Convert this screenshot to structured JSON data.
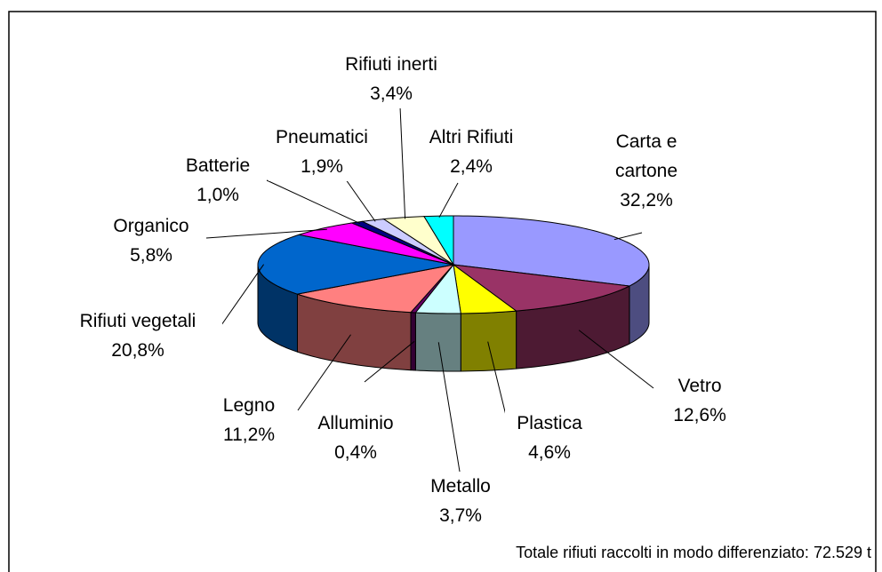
{
  "chart_data": {
    "type": "pie3d",
    "categories": [
      "Carta e cartone",
      "Vetro",
      "Plastica",
      "Metallo",
      "Alluminio",
      "Legno",
      "Rifiuti vegetali",
      "Organico",
      "Batterie",
      "Pneumatici",
      "Rifiuti inerti",
      "Altri Rifiuti"
    ],
    "values": [
      32.2,
      12.6,
      4.6,
      3.7,
      0.4,
      11.2,
      20.8,
      5.8,
      1.0,
      1.9,
      3.4,
      2.4
    ],
    "value_labels": [
      "32,2%",
      "12,6%",
      "4,6%",
      "3,7%",
      "0,4%",
      "11,2%",
      "20,8%",
      "5,8%",
      "1,0%",
      "1,9%",
      "3,4%",
      "2,4%"
    ],
    "colors": [
      "#9999ff",
      "#993366",
      "#ffff00",
      "#ccffff",
      "#660066",
      "#ff8080",
      "#0066cc",
      "#ff00ff",
      "#000080",
      "#ccccff",
      "#ffffcc",
      "#00ffff"
    ],
    "annotation": "Totale rifiuti raccolti in modo differenziato: 72.529 t"
  }
}
